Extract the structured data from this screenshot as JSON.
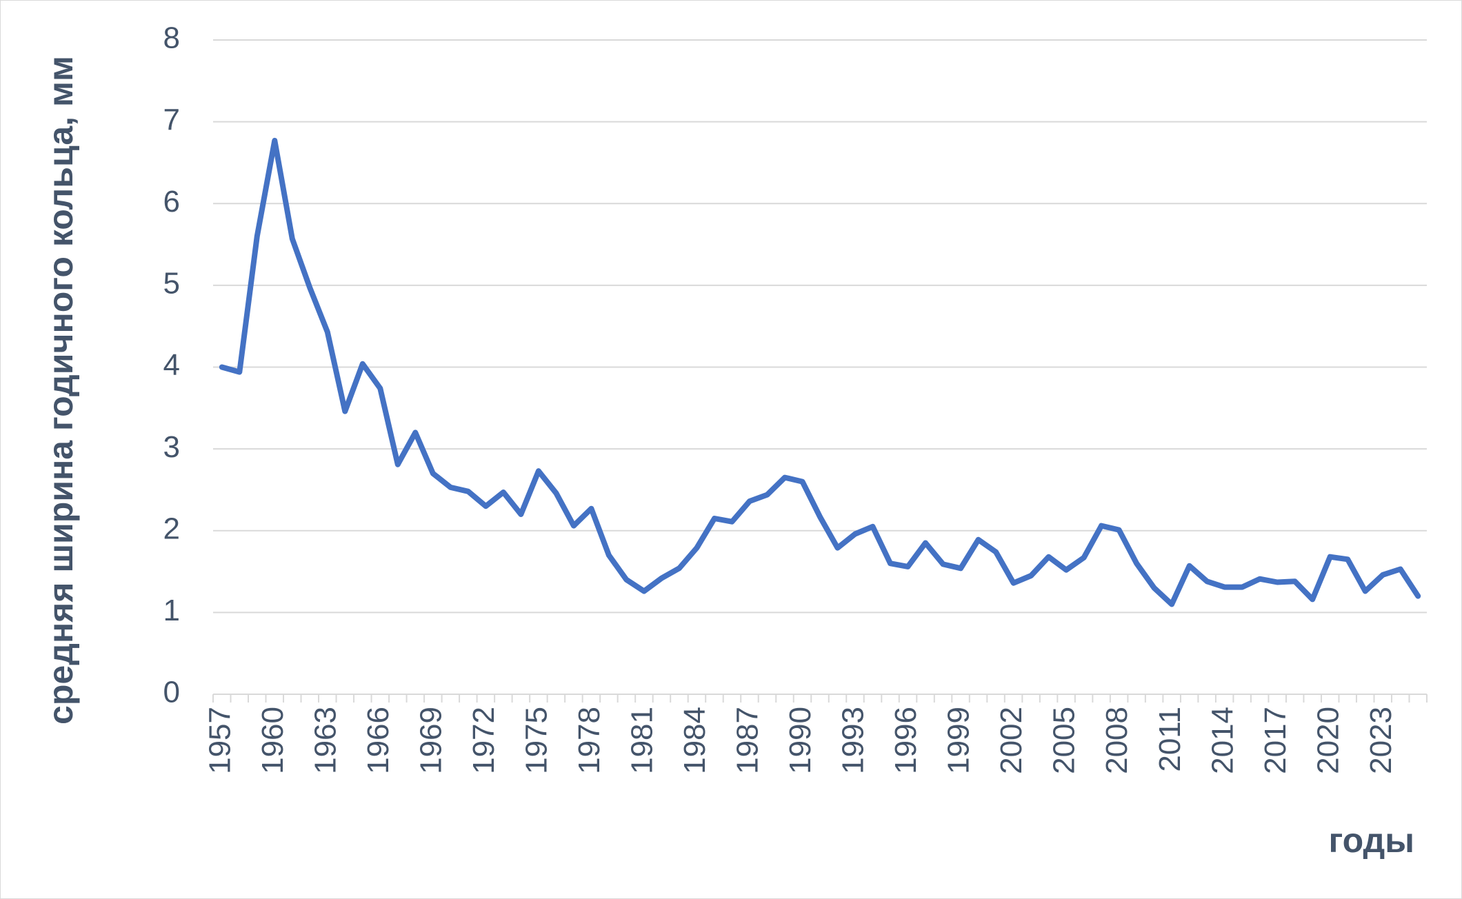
{
  "chart_data": {
    "type": "line",
    "y_label": "средняя ширина годичного кольца, мм",
    "x_label": "годы",
    "categories": [
      "1957",
      null,
      null,
      "1960",
      null,
      null,
      "1963",
      null,
      null,
      "1966",
      null,
      null,
      "1969",
      null,
      null,
      "1972",
      null,
      null,
      "1975",
      null,
      null,
      "1978",
      null,
      null,
      "1981",
      null,
      null,
      "1984",
      null,
      null,
      "1987",
      null,
      null,
      "1990",
      null,
      null,
      "1993",
      null,
      null,
      "1996",
      null,
      null,
      "1999",
      null,
      null,
      "2002",
      null,
      null,
      "2005",
      null,
      null,
      "2008",
      null,
      null,
      "2011",
      null,
      null,
      "2014",
      null,
      null,
      "2017",
      null,
      null,
      "2020",
      null,
      null,
      "2023",
      null,
      null
    ],
    "values": [
      4.0,
      3.94,
      5.6,
      6.77,
      5.57,
      4.97,
      4.43,
      3.46,
      4.04,
      3.74,
      2.81,
      3.2,
      2.7,
      2.53,
      2.48,
      2.3,
      2.47,
      2.2,
      2.73,
      2.46,
      2.06,
      2.27,
      1.7,
      1.4,
      1.26,
      1.42,
      1.54,
      1.79,
      2.15,
      2.11,
      2.36,
      2.44,
      2.65,
      2.6,
      2.17,
      1.79,
      1.96,
      2.05,
      1.6,
      1.56,
      1.85,
      1.59,
      1.54,
      1.89,
      1.74,
      1.36,
      1.45,
      1.68,
      1.52,
      1.67,
      2.06,
      2.01,
      1.6,
      1.3,
      1.1,
      1.57,
      1.38,
      1.31,
      1.31,
      1.41,
      1.37,
      1.38,
      1.16,
      1.68,
      1.65,
      1.26,
      1.46,
      1.53,
      1.2
    ],
    "color": "#4472c4",
    "ylim": [
      0,
      8
    ],
    "yticks": [
      0,
      1,
      2,
      3,
      4,
      5,
      6,
      7,
      8
    ],
    "grid": true
  }
}
